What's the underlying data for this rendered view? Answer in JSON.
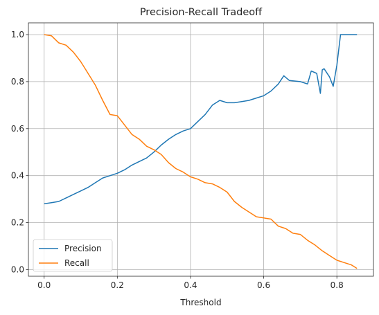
{
  "chart_data": {
    "type": "line",
    "title": "Precision-Recall Tradeoff",
    "xlabel": "Threshold",
    "ylabel": "",
    "xlim": [
      -0.043,
      0.9
    ],
    "ylim": [
      -0.028,
      1.05
    ],
    "xticks": [
      0.0,
      0.2,
      0.4,
      0.6,
      0.8
    ],
    "yticks": [
      0.0,
      0.2,
      0.4,
      0.6,
      0.8,
      1.0
    ],
    "xtick_labels": [
      "0.0",
      "0.2",
      "0.4",
      "0.6",
      "0.8"
    ],
    "ytick_labels": [
      "0.0",
      "0.2",
      "0.4",
      "0.6",
      "0.8",
      "1.0"
    ],
    "grid": true,
    "legend": "lower-left",
    "series": [
      {
        "name": "Precision",
        "color": "#1f77b4",
        "x": [
          0.0,
          0.02,
          0.04,
          0.06,
          0.08,
          0.1,
          0.12,
          0.14,
          0.16,
          0.18,
          0.2,
          0.22,
          0.24,
          0.26,
          0.28,
          0.3,
          0.32,
          0.34,
          0.36,
          0.38,
          0.4,
          0.42,
          0.44,
          0.46,
          0.48,
          0.5,
          0.52,
          0.54,
          0.56,
          0.58,
          0.6,
          0.62,
          0.64,
          0.655,
          0.67,
          0.7,
          0.72,
          0.73,
          0.745,
          0.755,
          0.76,
          0.765,
          0.78,
          0.79,
          0.8,
          0.81,
          0.82,
          0.855
        ],
        "y": [
          0.28,
          0.285,
          0.29,
          0.305,
          0.32,
          0.335,
          0.35,
          0.37,
          0.39,
          0.4,
          0.41,
          0.425,
          0.445,
          0.46,
          0.475,
          0.5,
          0.53,
          0.555,
          0.575,
          0.59,
          0.6,
          0.63,
          0.66,
          0.7,
          0.72,
          0.71,
          0.71,
          0.715,
          0.72,
          0.73,
          0.74,
          0.76,
          0.79,
          0.825,
          0.805,
          0.8,
          0.79,
          0.845,
          0.835,
          0.75,
          0.85,
          0.855,
          0.82,
          0.78,
          0.87,
          1.0,
          1.0,
          1.0
        ]
      },
      {
        "name": "Recall",
        "color": "#ff7f0e",
        "x": [
          0.0,
          0.02,
          0.04,
          0.06,
          0.08,
          0.1,
          0.12,
          0.14,
          0.16,
          0.18,
          0.2,
          0.22,
          0.24,
          0.26,
          0.28,
          0.3,
          0.32,
          0.34,
          0.36,
          0.38,
          0.4,
          0.42,
          0.44,
          0.46,
          0.48,
          0.5,
          0.52,
          0.54,
          0.56,
          0.58,
          0.6,
          0.62,
          0.64,
          0.66,
          0.68,
          0.7,
          0.72,
          0.74,
          0.76,
          0.78,
          0.8,
          0.82,
          0.84,
          0.855
        ],
        "y": [
          1.0,
          0.995,
          0.965,
          0.955,
          0.925,
          0.885,
          0.835,
          0.785,
          0.72,
          0.66,
          0.655,
          0.615,
          0.575,
          0.555,
          0.525,
          0.51,
          0.49,
          0.455,
          0.43,
          0.415,
          0.395,
          0.385,
          0.37,
          0.365,
          0.35,
          0.33,
          0.29,
          0.265,
          0.245,
          0.225,
          0.22,
          0.215,
          0.185,
          0.175,
          0.155,
          0.15,
          0.125,
          0.105,
          0.08,
          0.06,
          0.04,
          0.03,
          0.02,
          0.005
        ]
      }
    ]
  }
}
